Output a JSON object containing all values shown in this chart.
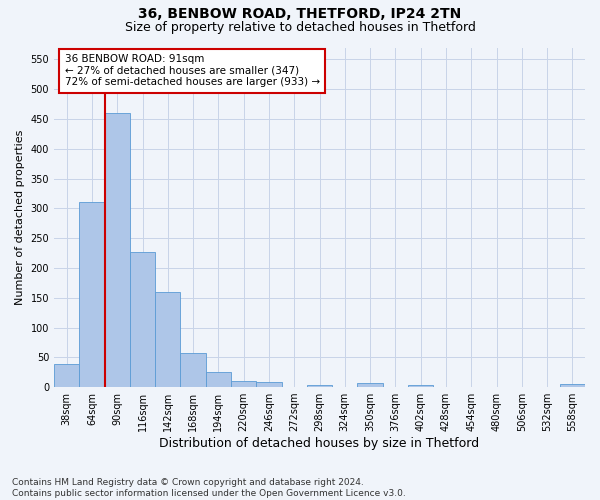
{
  "title1": "36, BENBOW ROAD, THETFORD, IP24 2TN",
  "title2": "Size of property relative to detached houses in Thetford",
  "xlabel": "Distribution of detached houses by size in Thetford",
  "ylabel": "Number of detached properties",
  "footnote": "Contains HM Land Registry data © Crown copyright and database right 2024.\nContains public sector information licensed under the Open Government Licence v3.0.",
  "categories": [
    "38sqm",
    "64sqm",
    "90sqm",
    "116sqm",
    "142sqm",
    "168sqm",
    "194sqm",
    "220sqm",
    "246sqm",
    "272sqm",
    "298sqm",
    "324sqm",
    "350sqm",
    "376sqm",
    "402sqm",
    "428sqm",
    "454sqm",
    "480sqm",
    "506sqm",
    "532sqm",
    "558sqm"
  ],
  "values": [
    38,
    311,
    460,
    226,
    160,
    58,
    25,
    11,
    8,
    0,
    4,
    0,
    7,
    0,
    3,
    0,
    0,
    0,
    0,
    0,
    5
  ],
  "bar_color": "#aec6e8",
  "bar_edge_color": "#5b9bd5",
  "subject_line_color": "#cc0000",
  "subject_line_index": 1.5,
  "annotation_box_text": "36 BENBOW ROAD: 91sqm\n← 27% of detached houses are smaller (347)\n72% of semi-detached houses are larger (933) →",
  "annotation_box_color": "#cc0000",
  "ylim": [
    0,
    570
  ],
  "yticks": [
    0,
    50,
    100,
    150,
    200,
    250,
    300,
    350,
    400,
    450,
    500,
    550
  ],
  "bg_color": "#f0f4fa",
  "grid_color": "#c8d4e8",
  "title1_fontsize": 10,
  "title2_fontsize": 9,
  "xlabel_fontsize": 9,
  "ylabel_fontsize": 8,
  "tick_fontsize": 7,
  "annotation_fontsize": 7.5,
  "footnote_fontsize": 6.5
}
